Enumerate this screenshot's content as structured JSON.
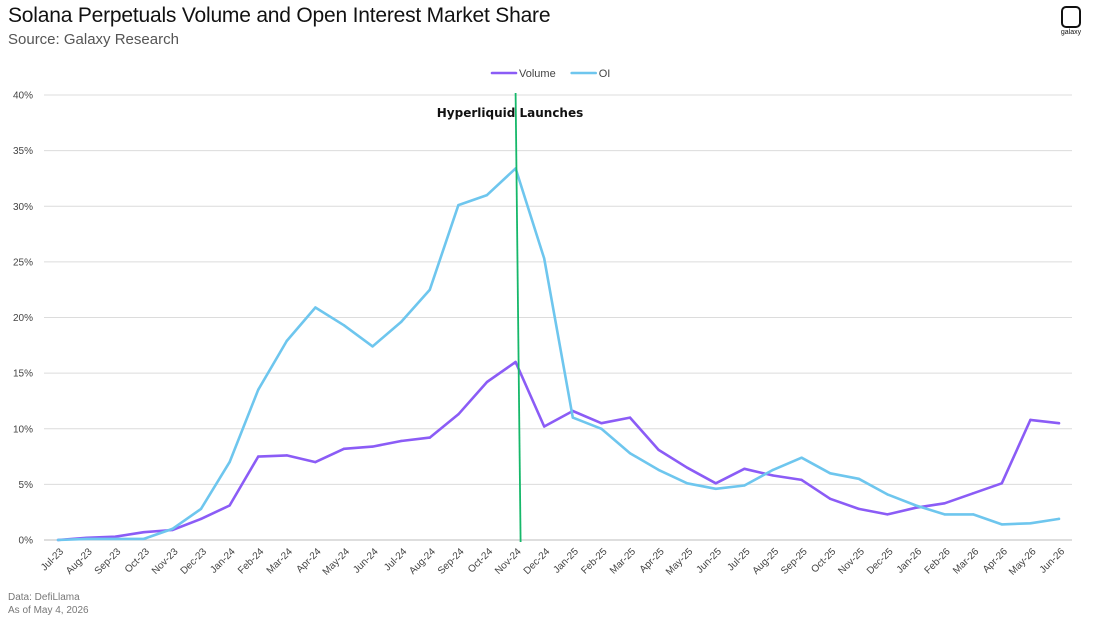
{
  "header": {
    "title": "Solana Perpetuals Volume and Open Interest Market Share",
    "subtitle": "Source: Galaxy Research",
    "logo_text": "galaxy"
  },
  "footer": {
    "source_line": "Data: DefiLlama",
    "date_line": "As of May 4, 2026"
  },
  "chart_data": {
    "type": "line",
    "title": "Solana Perpetuals Volume and Open Interest Market Share",
    "subtitle": "Source: Galaxy Research",
    "xlabel": "",
    "ylabel": "",
    "ylim": [
      0,
      40
    ],
    "y_ticks": [
      "0%",
      "5%",
      "10%",
      "15%",
      "20%",
      "25%",
      "30%",
      "35%",
      "40%"
    ],
    "grid": "horizontal",
    "legend_position": "top-center",
    "categories": [
      "Jul-23",
      "Aug-23",
      "Sep-23",
      "Oct-23",
      "Nov-23",
      "Dec-23",
      "Jan-24",
      "Feb-24",
      "Mar-24",
      "Apr-24",
      "May-24",
      "Jun-24",
      "Jul-24",
      "Aug-24",
      "Sep-24",
      "Oct-24",
      "Nov-24",
      "Dec-24",
      "Jan-25",
      "Feb-25",
      "Mar-25",
      "Apr-25",
      "May-25",
      "Jun-25",
      "Jul-25",
      "Aug-25",
      "Sep-25",
      "Oct-25",
      "Nov-25",
      "Dec-25",
      "Jan-26",
      "Feb-26",
      "Mar-26",
      "Apr-26",
      "May-26",
      "Jun-26"
    ],
    "series": [
      {
        "name": "Volume",
        "color": "#8b5cf6",
        "values": [
          0.0,
          0.2,
          0.3,
          0.7,
          0.9,
          1.9,
          3.1,
          7.5,
          7.6,
          7.0,
          8.2,
          8.4,
          8.9,
          9.2,
          11.3,
          14.2,
          16.0,
          10.2,
          11.6,
          10.5,
          11.0,
          8.1,
          6.5,
          5.1,
          6.4,
          5.8,
          5.4,
          3.7,
          2.8,
          2.3,
          2.9,
          3.3,
          4.2,
          5.1,
          10.8,
          10.5
        ]
      },
      {
        "name": "OI",
        "color": "#6ec6ee",
        "values": [
          0.0,
          0.1,
          0.1,
          0.1,
          1.0,
          2.8,
          7.0,
          13.5,
          17.9,
          20.9,
          19.3,
          17.4,
          19.6,
          22.5,
          30.1,
          31.0,
          33.4,
          25.3,
          11.0,
          10.0,
          7.8,
          6.3,
          5.1,
          4.6,
          4.9,
          6.3,
          7.4,
          6.0,
          5.5,
          4.1,
          3.1,
          2.3,
          2.3,
          1.4,
          1.5,
          1.9
        ]
      }
    ],
    "annotations": [
      {
        "text": "Hyperliquid  Launches",
        "x_category": "Nov-24",
        "line_color": "#16b86a"
      }
    ]
  }
}
